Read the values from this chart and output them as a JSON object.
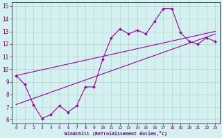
{
  "xlabel": "Windchill (Refroidissement éolien,°C)",
  "bg_color": "#d4f0f0",
  "line_color": "#990099",
  "grid_color": "#b8d0d0",
  "xlim": [
    -0.5,
    23.5
  ],
  "ylim": [
    5.7,
    15.3
  ],
  "xticks": [
    0,
    1,
    2,
    3,
    4,
    5,
    6,
    7,
    8,
    9,
    10,
    11,
    12,
    13,
    14,
    15,
    16,
    17,
    18,
    19,
    20,
    21,
    22,
    23
  ],
  "yticks": [
    6,
    7,
    8,
    9,
    10,
    11,
    12,
    13,
    14,
    15
  ],
  "line1_x": [
    0,
    1,
    2,
    3,
    4,
    5,
    6,
    7,
    8,
    9,
    10,
    11,
    12,
    13,
    14,
    15,
    16,
    17,
    18,
    19,
    20,
    21,
    22,
    23
  ],
  "line1_y": [
    9.5,
    8.8,
    7.2,
    6.1,
    6.4,
    7.1,
    6.6,
    7.1,
    8.6,
    8.6,
    10.8,
    12.5,
    13.2,
    12.8,
    13.1,
    12.8,
    13.8,
    14.8,
    14.8,
    12.9,
    12.2,
    12.0,
    12.5,
    12.2
  ],
  "line2_x": [
    0,
    23
  ],
  "line2_y": [
    9.5,
    13.0
  ],
  "line3_x": [
    0,
    23
  ],
  "line3_y": [
    7.2,
    12.8
  ]
}
